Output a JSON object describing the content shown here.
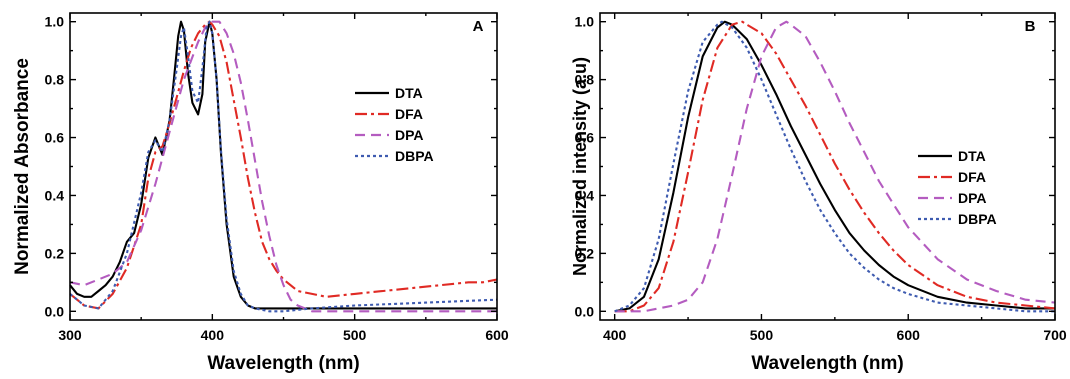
{
  "chart_data": [
    {
      "type": "line",
      "panel_label": "A",
      "xlabel": "Wavelength (nm)",
      "ylabel": "Normalized Absorbance",
      "xlim": [
        300,
        600
      ],
      "ylim": [
        -0.03,
        1.03
      ],
      "xticks": [
        "300",
        "400",
        "500",
        "600"
      ],
      "yticks": [
        "0.0",
        "0.2",
        "0.4",
        "0.6",
        "0.8",
        "1.0"
      ],
      "legend_position": "right-middle",
      "grid": false,
      "series": [
        {
          "name": "DTA",
          "color": "#000000",
          "dash": "solid",
          "x": [
            300,
            305,
            310,
            315,
            320,
            325,
            330,
            335,
            340,
            345,
            350,
            355,
            360,
            365,
            370,
            373,
            376,
            378,
            380,
            383,
            386,
            390,
            393,
            395,
            398,
            400,
            403,
            406,
            410,
            415,
            420,
            425,
            430,
            440,
            450,
            470,
            500,
            550,
            600
          ],
          "y": [
            0.09,
            0.06,
            0.05,
            0.05,
            0.07,
            0.09,
            0.12,
            0.17,
            0.24,
            0.27,
            0.37,
            0.53,
            0.6,
            0.54,
            0.66,
            0.8,
            0.95,
            1.0,
            0.97,
            0.82,
            0.72,
            0.68,
            0.75,
            0.93,
            1.0,
            0.96,
            0.8,
            0.55,
            0.3,
            0.12,
            0.05,
            0.02,
            0.01,
            0.01,
            0.01,
            0.01,
            0.01,
            0.01,
            0.01
          ]
        },
        {
          "name": "DFA",
          "color": "#e02a24",
          "dash": "dashdot",
          "x": [
            300,
            310,
            320,
            330,
            340,
            350,
            355,
            360,
            365,
            370,
            375,
            380,
            385,
            390,
            395,
            398,
            400,
            405,
            410,
            415,
            420,
            425,
            430,
            435,
            440,
            445,
            450,
            455,
            460,
            470,
            480,
            500,
            520,
            540,
            560,
            580,
            590,
            600
          ],
          "y": [
            0.06,
            0.02,
            0.01,
            0.06,
            0.15,
            0.3,
            0.46,
            0.55,
            0.57,
            0.65,
            0.74,
            0.83,
            0.91,
            0.96,
            0.99,
            1.0,
            0.99,
            0.95,
            0.86,
            0.73,
            0.6,
            0.46,
            0.34,
            0.24,
            0.18,
            0.14,
            0.11,
            0.09,
            0.07,
            0.06,
            0.05,
            0.06,
            0.07,
            0.08,
            0.09,
            0.1,
            0.1,
            0.11
          ]
        },
        {
          "name": "DPA",
          "color": "#b45cc0",
          "dash": "dash",
          "x": [
            300,
            310,
            320,
            330,
            340,
            350,
            360,
            370,
            380,
            390,
            395,
            400,
            405,
            410,
            415,
            420,
            425,
            430,
            435,
            440,
            445,
            450,
            455,
            460,
            470,
            480,
            500,
            550,
            600
          ],
          "y": [
            0.1,
            0.09,
            0.11,
            0.13,
            0.17,
            0.28,
            0.44,
            0.62,
            0.8,
            0.93,
            0.98,
            1.0,
            1.0,
            0.96,
            0.89,
            0.79,
            0.66,
            0.52,
            0.38,
            0.26,
            0.16,
            0.09,
            0.04,
            0.02,
            0.0,
            0.0,
            0.0,
            0.0,
            0.0
          ]
        },
        {
          "name": "DBPA",
          "color": "#3e5bb0",
          "dash": "dot",
          "x": [
            300,
            310,
            320,
            330,
            340,
            350,
            355,
            360,
            365,
            370,
            375,
            378,
            380,
            383,
            386,
            390,
            393,
            396,
            398,
            400,
            403,
            406,
            410,
            415,
            420,
            425,
            430,
            440,
            450,
            470,
            500,
            550,
            600
          ],
          "y": [
            0.06,
            0.02,
            0.01,
            0.07,
            0.2,
            0.41,
            0.55,
            0.59,
            0.55,
            0.66,
            0.84,
            0.95,
            0.98,
            0.88,
            0.76,
            0.72,
            0.84,
            0.98,
            1.0,
            0.96,
            0.8,
            0.56,
            0.32,
            0.14,
            0.06,
            0.02,
            0.01,
            0.0,
            0.0,
            0.01,
            0.02,
            0.03,
            0.04
          ]
        }
      ]
    },
    {
      "type": "line",
      "panel_label": "B",
      "xlabel": "Wavelength (nm)",
      "ylabel": "Normalized intensity (a.u)",
      "xlim": [
        390,
        700
      ],
      "ylim": [
        -0.03,
        1.03
      ],
      "xticks": [
        "400",
        "500",
        "600",
        "700"
      ],
      "yticks": [
        "0.0",
        "0.2",
        "0.4",
        "0.6",
        "0.8",
        "1.0"
      ],
      "legend_position": "bottom-right",
      "grid": false,
      "series": [
        {
          "name": "DTA",
          "color": "#000000",
          "dash": "solid",
          "x": [
            400,
            410,
            420,
            430,
            440,
            450,
            460,
            470,
            475,
            480,
            490,
            500,
            510,
            520,
            530,
            540,
            550,
            560,
            570,
            580,
            590,
            600,
            620,
            640,
            660,
            680,
            700
          ],
          "y": [
            0.0,
            0.01,
            0.05,
            0.18,
            0.41,
            0.67,
            0.88,
            0.98,
            1.0,
            0.99,
            0.94,
            0.85,
            0.75,
            0.64,
            0.54,
            0.44,
            0.35,
            0.27,
            0.21,
            0.16,
            0.12,
            0.09,
            0.05,
            0.03,
            0.02,
            0.01,
            0.01
          ]
        },
        {
          "name": "DFA",
          "color": "#e02a24",
          "dash": "dashdot",
          "x": [
            400,
            410,
            420,
            430,
            440,
            450,
            460,
            470,
            480,
            487,
            490,
            500,
            510,
            520,
            530,
            540,
            550,
            560,
            570,
            580,
            590,
            600,
            620,
            640,
            660,
            680,
            700
          ],
          "y": [
            0.0,
            0.0,
            0.02,
            0.08,
            0.24,
            0.48,
            0.73,
            0.91,
            0.99,
            1.0,
            0.99,
            0.96,
            0.89,
            0.8,
            0.71,
            0.61,
            0.51,
            0.42,
            0.34,
            0.27,
            0.21,
            0.16,
            0.09,
            0.05,
            0.03,
            0.02,
            0.01
          ]
        },
        {
          "name": "DPA",
          "color": "#b45cc0",
          "dash": "dash",
          "x": [
            400,
            420,
            440,
            450,
            460,
            470,
            480,
            490,
            500,
            510,
            517,
            520,
            530,
            540,
            550,
            560,
            570,
            580,
            590,
            600,
            620,
            640,
            660,
            680,
            700
          ],
          "y": [
            0.0,
            0.0,
            0.02,
            0.04,
            0.1,
            0.25,
            0.47,
            0.7,
            0.88,
            0.98,
            1.0,
            0.99,
            0.95,
            0.86,
            0.76,
            0.65,
            0.55,
            0.45,
            0.37,
            0.29,
            0.18,
            0.11,
            0.07,
            0.04,
            0.03
          ]
        },
        {
          "name": "DBPA",
          "color": "#3e5bb0",
          "dash": "dot",
          "x": [
            400,
            410,
            420,
            430,
            440,
            450,
            460,
            470,
            473,
            480,
            490,
            500,
            510,
            520,
            530,
            540,
            550,
            560,
            570,
            580,
            590,
            600,
            620,
            640,
            660,
            680,
            700
          ],
          "y": [
            0.0,
            0.02,
            0.08,
            0.25,
            0.51,
            0.76,
            0.93,
            0.99,
            1.0,
            0.98,
            0.91,
            0.8,
            0.68,
            0.56,
            0.45,
            0.35,
            0.27,
            0.2,
            0.15,
            0.11,
            0.08,
            0.06,
            0.03,
            0.02,
            0.01,
            0.0,
            0.0
          ]
        }
      ]
    }
  ]
}
